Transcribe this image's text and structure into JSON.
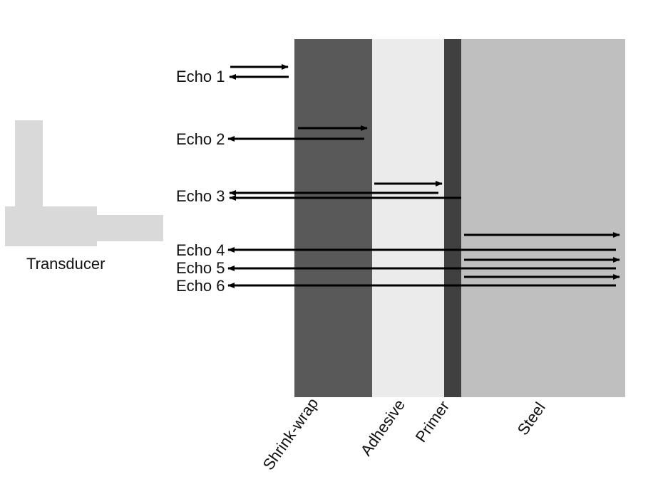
{
  "transducer": {
    "label": "Transducer",
    "color": "#d9d9d9"
  },
  "layers": [
    {
      "key": "shrink",
      "label": "Shrink-wrap",
      "color": "#595959"
    },
    {
      "key": "adhesive",
      "label": "Adhesive",
      "color": "#ebebeb"
    },
    {
      "key": "primer",
      "label": "Primer",
      "color": "#404040"
    },
    {
      "key": "steel",
      "label": "Steel",
      "color": "#bfbfbf"
    }
  ],
  "echoes": [
    {
      "label": "Echo 1"
    },
    {
      "label": "Echo 2"
    },
    {
      "label": "Echo 3"
    },
    {
      "label": "Echo 4"
    },
    {
      "label": "Echo 5"
    },
    {
      "label": "Echo 6"
    }
  ],
  "arrow_color": "#000000"
}
